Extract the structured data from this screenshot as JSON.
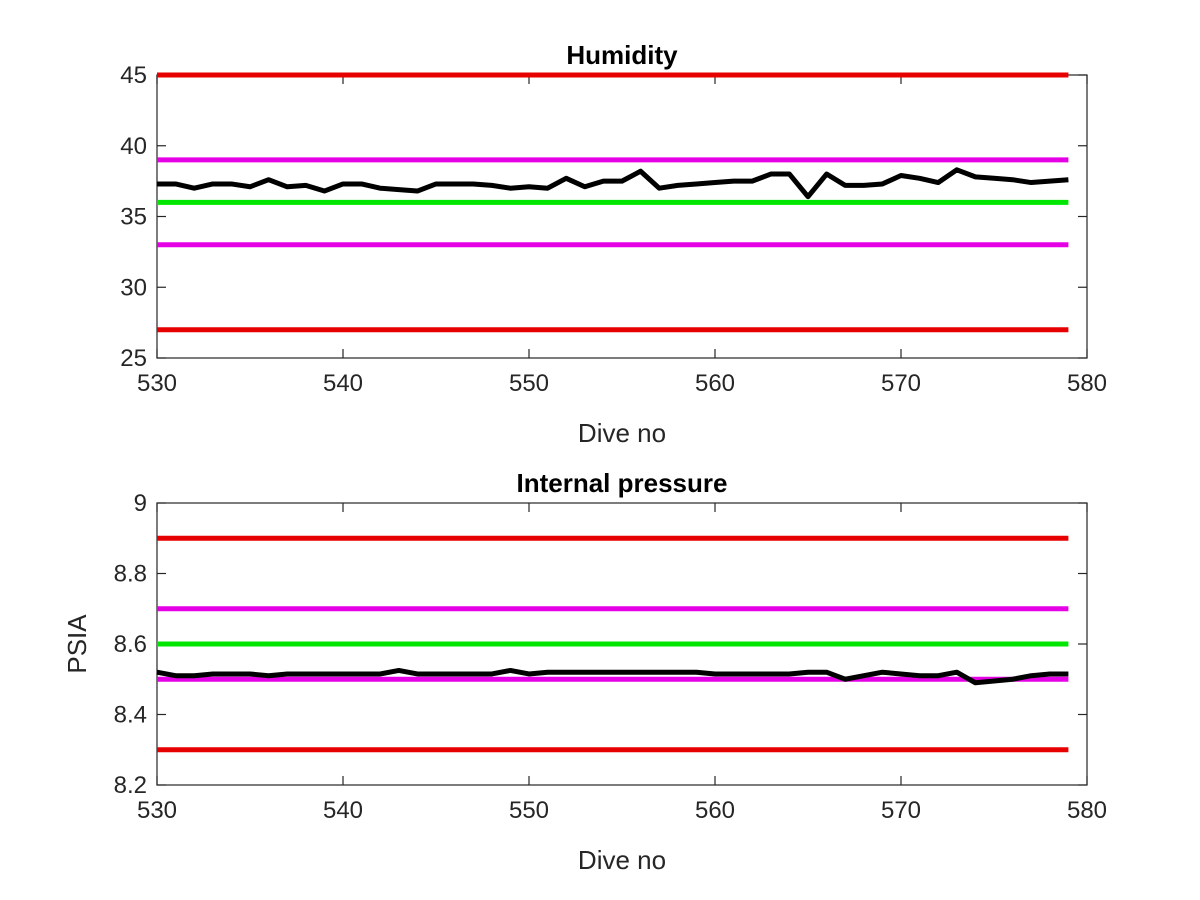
{
  "chart_data": [
    {
      "type": "line",
      "title": "Humidity",
      "xlabel": "Dive no",
      "ylabel": "",
      "xlim": [
        530,
        580
      ],
      "ylim": [
        25,
        45
      ],
      "xticks": [
        530,
        540,
        550,
        560,
        570,
        580
      ],
      "yticks": [
        25,
        30,
        35,
        40,
        45
      ],
      "grid": false,
      "series": [
        {
          "color": "#000000",
          "x": [
            530,
            531,
            532,
            533,
            534,
            535,
            536,
            537,
            538,
            539,
            540,
            541,
            542,
            543,
            544,
            545,
            546,
            547,
            548,
            549,
            550,
            551,
            552,
            553,
            554,
            555,
            556,
            557,
            558,
            559,
            560,
            561,
            562,
            563,
            564,
            565,
            566,
            567,
            568,
            569,
            570,
            571,
            572,
            573,
            574,
            575,
            576,
            577,
            578,
            579
          ],
          "y": [
            37.3,
            37.3,
            37.0,
            37.3,
            37.3,
            37.1,
            37.6,
            37.1,
            37.2,
            36.8,
            37.3,
            37.3,
            37.0,
            36.9,
            36.8,
            37.3,
            37.3,
            37.3,
            37.2,
            37.0,
            37.1,
            37.0,
            37.7,
            37.1,
            37.5,
            37.5,
            38.2,
            37.0,
            37.2,
            37.3,
            37.4,
            37.5,
            37.5,
            38.0,
            38.0,
            36.4,
            38.0,
            37.2,
            37.2,
            37.3,
            37.9,
            37.7,
            37.4,
            38.3,
            37.8,
            37.7,
            37.6,
            37.4,
            37.5,
            37.6
          ]
        },
        {
          "color": "#e60000",
          "x": [
            530,
            579
          ],
          "y": [
            45,
            45
          ]
        },
        {
          "color": "#e600e6",
          "x": [
            530,
            579
          ],
          "y": [
            39,
            39
          ]
        },
        {
          "color": "#00e600",
          "x": [
            530,
            579
          ],
          "y": [
            36,
            36
          ]
        },
        {
          "color": "#e600e6",
          "x": [
            530,
            579
          ],
          "y": [
            33,
            33
          ]
        },
        {
          "color": "#e60000",
          "x": [
            530,
            579
          ],
          "y": [
            27,
            27
          ]
        }
      ]
    },
    {
      "type": "line",
      "title": "Internal pressure",
      "xlabel": "Dive no",
      "ylabel": "PSIA",
      "xlim": [
        530,
        580
      ],
      "ylim": [
        8.2,
        9
      ],
      "xticks": [
        530,
        540,
        550,
        560,
        570,
        580
      ],
      "yticks": [
        8.2,
        8.4,
        8.6,
        8.8,
        9
      ],
      "grid": false,
      "series": [
        {
          "color": "#000000",
          "x": [
            530,
            531,
            532,
            533,
            534,
            535,
            536,
            537,
            538,
            539,
            540,
            541,
            542,
            543,
            544,
            545,
            546,
            547,
            548,
            549,
            550,
            551,
            552,
            553,
            554,
            555,
            556,
            557,
            558,
            559,
            560,
            561,
            562,
            563,
            564,
            565,
            566,
            567,
            568,
            569,
            570,
            571,
            572,
            573,
            574,
            575,
            576,
            577,
            578,
            579
          ],
          "y": [
            8.52,
            8.51,
            8.51,
            8.515,
            8.515,
            8.515,
            8.51,
            8.515,
            8.515,
            8.515,
            8.515,
            8.515,
            8.515,
            8.525,
            8.515,
            8.515,
            8.515,
            8.515,
            8.515,
            8.525,
            8.515,
            8.52,
            8.52,
            8.52,
            8.52,
            8.52,
            8.52,
            8.52,
            8.52,
            8.52,
            8.515,
            8.515,
            8.515,
            8.515,
            8.515,
            8.52,
            8.52,
            8.5,
            8.51,
            8.52,
            8.515,
            8.51,
            8.51,
            8.52,
            8.49,
            8.495,
            8.5,
            8.51,
            8.515,
            8.515
          ]
        },
        {
          "color": "#e60000",
          "x": [
            530,
            579
          ],
          "y": [
            8.9,
            8.9
          ]
        },
        {
          "color": "#e600e6",
          "x": [
            530,
            579
          ],
          "y": [
            8.7,
            8.7
          ]
        },
        {
          "color": "#00e600",
          "x": [
            530,
            579
          ],
          "y": [
            8.6,
            8.6
          ]
        },
        {
          "color": "#e600e6",
          "x": [
            530,
            579
          ],
          "y": [
            8.5,
            8.5
          ]
        },
        {
          "color": "#e60000",
          "x": [
            530,
            579
          ],
          "y": [
            8.3,
            8.3
          ]
        }
      ]
    }
  ]
}
